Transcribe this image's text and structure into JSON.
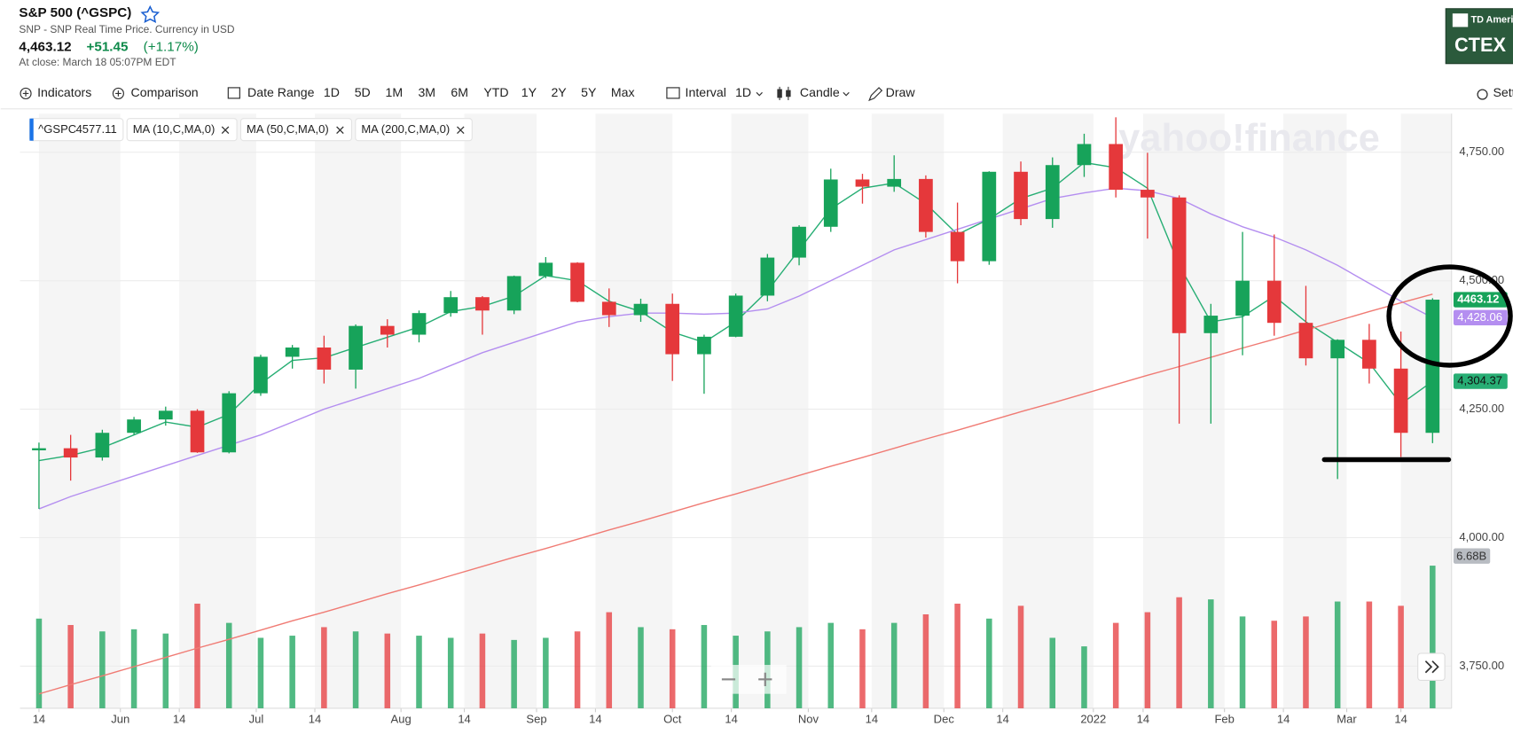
{
  "header": {
    "title": "S&P 500 (^GSPC)",
    "subtitle": "SNP - SNP Real Time Price. Currency in USD",
    "price": "4,463.12",
    "change": "+51.45",
    "change_pct": "(+1.17%)",
    "close_time": "At close: March 18 05:07PM EDT"
  },
  "ad": {
    "brand": "TD Ameritrade",
    "text": "CTEX"
  },
  "toolbar": {
    "items": [
      "Indicators",
      "Comparison",
      "Date Range",
      "1D",
      "5D",
      "1M",
      "3M",
      "6M",
      "YTD",
      "1Y",
      "2Y",
      "5Y",
      "Max",
      "Interval",
      "1D",
      "Candle",
      "Draw",
      "Settings"
    ]
  },
  "legend": {
    "symbol": "^GSPC",
    "symbol_value": 4577.11
  },
  "watermark": "yahoo!finance",
  "chart_data": {
    "type": "candlestick",
    "open": [
      4170,
      4174,
      4156,
      4204,
      4230,
      4247,
      4166,
      4281,
      4352,
      4370,
      4327,
      4412,
      4395,
      4437,
      4468,
      4442,
      4509,
      4535,
      4459,
      4433,
      4455,
      4357,
      4391,
      4471,
      4545,
      4605,
      4697,
      4683,
      4698,
      4595,
      4538,
      4712,
      4620,
      4725,
      4766,
      4677,
      4662,
      4398,
      4432,
      4500,
      4418,
      4349,
      4385,
      4329,
      4204
    ],
    "high": [
      4185,
      4200,
      4210,
      4235,
      4255,
      4250,
      4285,
      4356,
      4375,
      4393,
      4415,
      4425,
      4442,
      4480,
      4470,
      4510,
      4546,
      4536,
      4485,
      4465,
      4475,
      4395,
      4475,
      4552,
      4608,
      4718,
      4708,
      4744,
      4705,
      4652,
      4713,
      4732,
      4740,
      4786,
      4818,
      4749,
      4666,
      4455,
      4595,
      4590,
      4490,
      4386,
      4416,
      4401,
      4466
    ],
    "low": [
      4056,
      4111,
      4150,
      4200,
      4218,
      4165,
      4164,
      4276,
      4329,
      4300,
      4290,
      4370,
      4380,
      4430,
      4395,
      4435,
      4505,
      4458,
      4410,
      4420,
      4305,
      4280,
      4390,
      4460,
      4530,
      4595,
      4650,
      4673,
      4584,
      4495,
      4531,
      4608,
      4603,
      4702,
      4662,
      4582,
      4222,
      4222,
      4355,
      4393,
      4335,
      4114,
      4300,
      4157,
      4184
    ],
    "close": [
      4174,
      4156,
      4204,
      4230,
      4247,
      4166,
      4281,
      4352,
      4370,
      4327,
      4412,
      4395,
      4437,
      4468,
      4442,
      4509,
      4535,
      4459,
      4433,
      4455,
      4357,
      4391,
      4471,
      4545,
      4605,
      4697,
      4683,
      4698,
      4595,
      4538,
      4712,
      4620,
      4725,
      4766,
      4677,
      4662,
      4398,
      4432,
      4500,
      4418,
      4349,
      4385,
      4329,
      4204,
      4463.12
    ],
    "up_color": "#17a35a",
    "down_color": "#e5383b",
    "last_close": 4463.12,
    "series": [
      {
        "name": "MA (10,C,MA,0)",
        "color": "#27ae74",
        "tag": "4,304.37",
        "values": [
          4150,
          4160,
          4175,
          4200,
          4225,
          4215,
          4240,
          4300,
          4345,
          4350,
          4370,
          4390,
          4410,
          4440,
          4450,
          4470,
          4510,
          4500,
          4460,
          4440,
          4400,
          4380,
          4420,
          4480,
          4560,
          4640,
          4680,
          4690,
          4650,
          4590,
          4620,
          4660,
          4680,
          4730,
          4720,
          4680,
          4530,
          4420,
          4430,
          4470,
          4420,
          4380,
          4340,
          4260,
          4304.37
        ]
      },
      {
        "name": "MA (50,C,MA,0)",
        "color": "#b48ef0",
        "tag": "4,428.06",
        "values": [
          4056,
          4080,
          4100,
          4120,
          4140,
          4160,
          4180,
          4200,
          4225,
          4250,
          4270,
          4290,
          4310,
          4335,
          4360,
          4380,
          4400,
          4420,
          4430,
          4437,
          4437,
          4435,
          4437,
          4445,
          4470,
          4500,
          4530,
          4560,
          4580,
          4600,
          4620,
          4640,
          4660,
          4671,
          4680,
          4675,
          4660,
          4630,
          4605,
          4585,
          4560,
          4530,
          4495,
          4460,
          4428.06
        ]
      },
      {
        "name": "MA (200,C,MA,0)",
        "color": "#f07b74",
        "values": [
          3696,
          3714,
          3731,
          3749,
          3767,
          3785,
          3802,
          3820,
          3838,
          3855,
          3873,
          3891,
          3908,
          3926,
          3944,
          3962,
          3979,
          3997,
          4015,
          4032,
          4050,
          4068,
          4085,
          4103,
          4121,
          4139,
          4156,
          4174,
          4192,
          4209,
          4227,
          4245,
          4262,
          4280,
          4298,
          4316,
          4333,
          4351,
          4369,
          4386,
          4404,
          4422,
          4440,
          4457,
          4474
        ]
      }
    ],
    "volume": [
      4.2,
      3.9,
      3.6,
      3.7,
      3.5,
      4.9,
      4.0,
      3.3,
      3.4,
      3.8,
      3.6,
      3.5,
      3.4,
      3.3,
      3.5,
      3.2,
      3.3,
      3.6,
      4.5,
      3.8,
      3.7,
      3.9,
      3.4,
      3.6,
      3.8,
      4.0,
      3.7,
      4.0,
      4.4,
      4.9,
      4.2,
      4.8,
      3.3,
      2.9,
      4.0,
      4.5,
      5.2,
      5.1,
      4.3,
      4.1,
      4.3,
      5.0,
      5.0,
      4.8,
      6.68
    ],
    "volume_tag": "6.68B",
    "ylim": [
      3668,
      4825
    ],
    "yticks": [
      {
        "value": 4750,
        "label": "4,750.00"
      },
      {
        "value": 4500,
        "label": "4,500.00"
      },
      {
        "value": 4250,
        "label": "4,250.00"
      },
      {
        "value": 4000,
        "label": "4,000.00"
      },
      {
        "value": 3750,
        "label": "3,750.00"
      }
    ],
    "xlim": [
      -0.6,
      44.6
    ],
    "xticks": [
      {
        "value": 0,
        "label": "14"
      },
      {
        "value": 2.57,
        "label": "Jun"
      },
      {
        "value": 4.43,
        "label": "14"
      },
      {
        "value": 6.86,
        "label": "Jul"
      },
      {
        "value": 8.71,
        "label": "14"
      },
      {
        "value": 11.43,
        "label": "Aug"
      },
      {
        "value": 13.43,
        "label": "14"
      },
      {
        "value": 15.71,
        "label": "Sep"
      },
      {
        "value": 17.57,
        "label": "14"
      },
      {
        "value": 20.0,
        "label": "Oct"
      },
      {
        "value": 21.86,
        "label": "14"
      },
      {
        "value": 24.29,
        "label": "Nov"
      },
      {
        "value": 26.29,
        "label": "14"
      },
      {
        "value": 28.57,
        "label": "Dec"
      },
      {
        "value": 30.43,
        "label": "14"
      },
      {
        "value": 33.29,
        "label": "2022"
      },
      {
        "value": 34.86,
        "label": "14"
      },
      {
        "value": 37.43,
        "label": "Feb"
      },
      {
        "value": 39.29,
        "label": "14"
      },
      {
        "value": 41.29,
        "label": "Mar"
      },
      {
        "value": 43.0,
        "label": "14"
      }
    ],
    "grid": true
  }
}
